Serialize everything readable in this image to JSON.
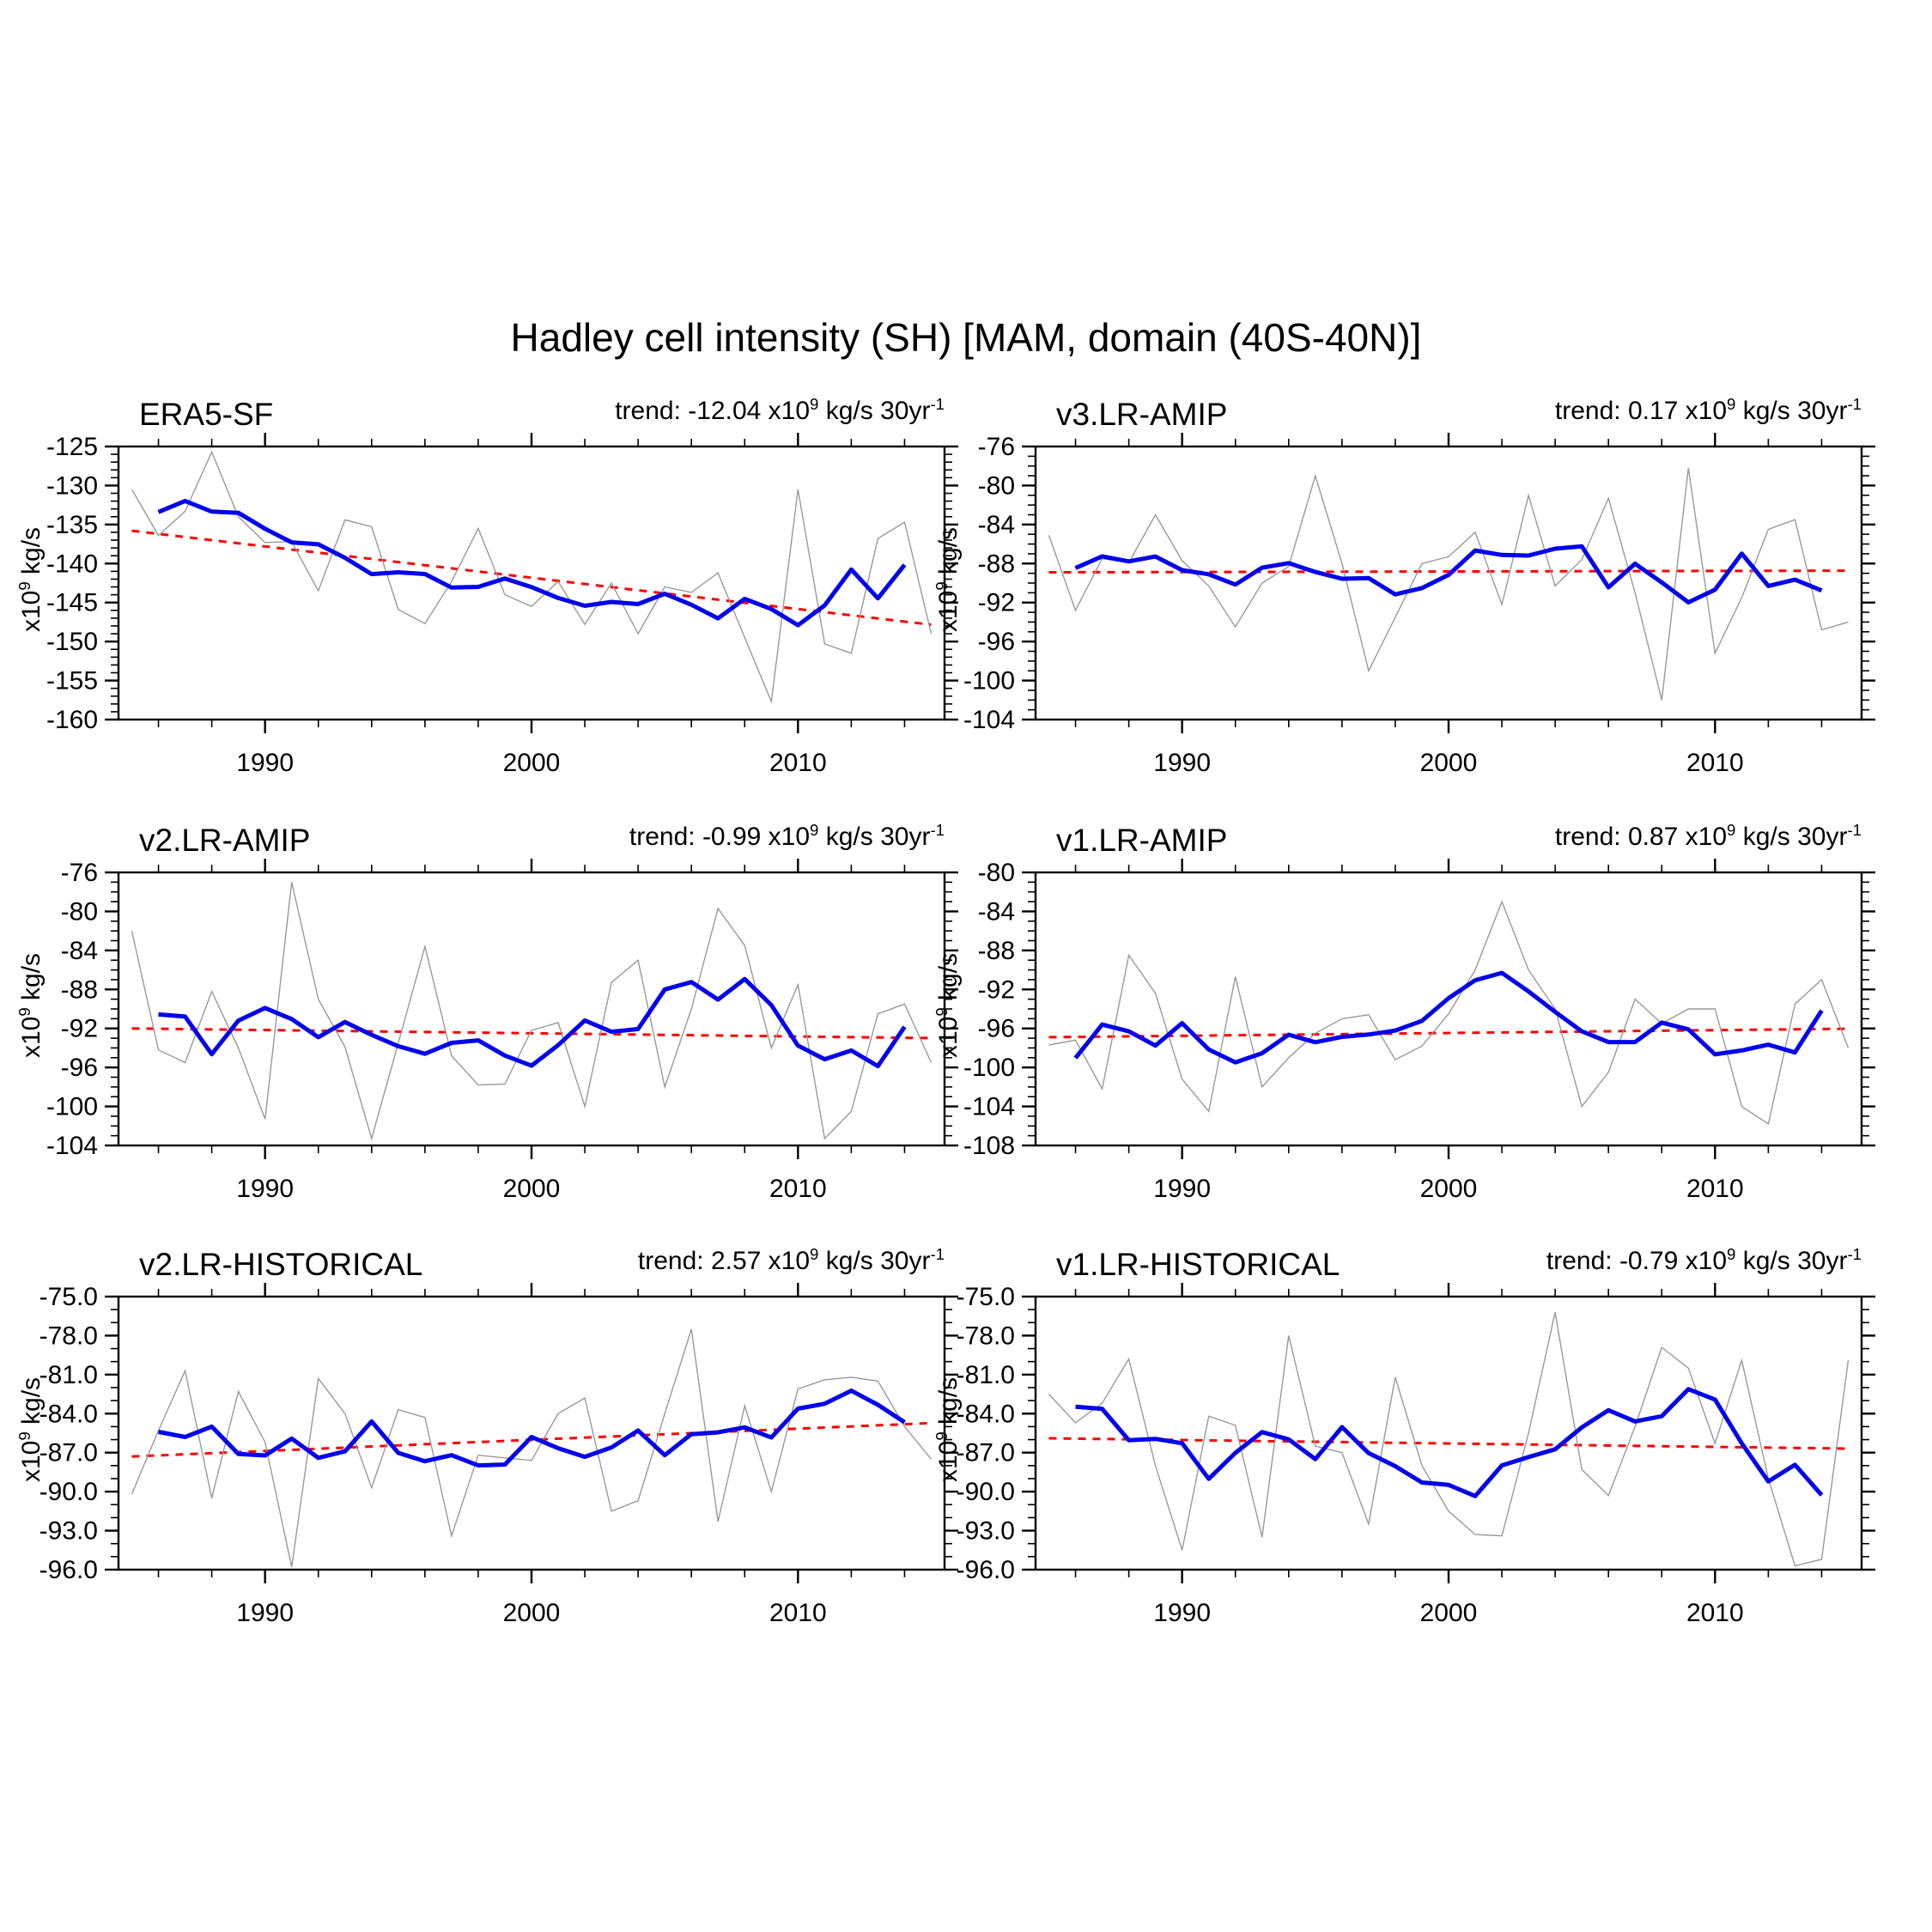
{
  "title": "Hadley cell intensity (SH) [MAM, domain (40S-40N)]",
  "trend_template": {
    "prefix": "trend: ",
    "x10": " x10",
    "sup9": "9",
    "mid": " kg/s 30yr",
    "supm1": "-1"
  },
  "axis": {
    "ylabel": {
      "prefix": "x10",
      "sup": "9",
      "suffix": " kg/s"
    },
    "x_tick_labels": [
      "1990",
      "2000",
      "2010"
    ]
  },
  "colors": {
    "raw_line": "#999999",
    "smoothed_line": "#0000ee",
    "trend_line": "#ff0000",
    "frame": "#000000"
  },
  "chart_data": {
    "type": "line",
    "title": "Hadley cell intensity (SH) [MAM, domain (40S-40N)]",
    "x_range": [
      1984.5,
      2015.5
    ],
    "x_major_years": [
      1990,
      2000,
      2010
    ],
    "x_minor_step": 2,
    "years_start": 1985,
    "years_end": 2015,
    "series_notes": "gray = annual values, blue = 5-year running mean (computed from raw), red = linear trend over 1985-2015",
    "panels": [
      {
        "name": "ERA5-SF",
        "trend_value": "-12.04",
        "row": 0,
        "col": 0,
        "ylim": [
          -160,
          -125
        ],
        "y_minor_step": 1,
        "y_tick_labels": [
          "-125",
          "-130",
          "-135",
          "-140",
          "-145",
          "-150",
          "-155",
          "-160"
        ],
        "raw_values": [
          -130.5,
          -136.4,
          -133.3,
          -125.7,
          -134.0,
          -137.3,
          -137.2,
          -143.5,
          -134.4,
          -135.3,
          -145.9,
          -147.7,
          -142.3,
          -135.5,
          -144.0,
          -145.5,
          -142.3,
          -147.8,
          -142.5,
          -149.0,
          -143.0,
          -143.7,
          -141.2,
          -149.5,
          -157.7,
          -130.5,
          -150.3,
          -151.5,
          -136.8,
          -134.7,
          -149.0
        ],
        "trend_endpoints": [
          -135.8,
          -147.84
        ]
      },
      {
        "name": "v3.LR-AMIP",
        "trend_value": "0.17",
        "row": 0,
        "col": 1,
        "ylim": [
          -104,
          -76
        ],
        "y_minor_step": 1,
        "y_tick_labels": [
          "-76",
          "-80",
          "-84",
          "-88",
          "-92",
          "-96",
          "-100",
          "-104"
        ],
        "raw_values": [
          -85.1,
          -92.8,
          -87.5,
          -87.9,
          -83.0,
          -87.7,
          -90.3,
          -94.5,
          -90.0,
          -88.3,
          -79.0,
          -88.0,
          -99.0,
          -93.5,
          -88.0,
          -87.3,
          -84.8,
          -92.2,
          -81.0,
          -90.3,
          -87.6,
          -81.3,
          -91.0,
          -102.0,
          -78.2,
          -97.2,
          -91.5,
          -84.5,
          -83.5,
          -94.8,
          -94.0
        ],
        "trend_endpoints": [
          -88.9,
          -88.73
        ]
      },
      {
        "name": "v2.LR-AMIP",
        "trend_value": "-0.99",
        "row": 1,
        "col": 0,
        "ylim": [
          -104,
          -76
        ],
        "y_minor_step": 1,
        "y_tick_labels": [
          "-76",
          "-80",
          "-84",
          "-88",
          "-92",
          "-96",
          "-100",
          "-104"
        ],
        "raw_values": [
          -82.0,
          -94.2,
          -95.5,
          -88.2,
          -94.0,
          -101.3,
          -77.0,
          -89.0,
          -93.9,
          -103.3,
          -93.5,
          -83.6,
          -94.8,
          -97.8,
          -97.7,
          -92.2,
          -91.4,
          -100.0,
          -87.3,
          -85.0,
          -98.0,
          -90.0,
          -79.7,
          -83.5,
          -94.0,
          -87.5,
          -103.3,
          -100.5,
          -90.5,
          -89.5,
          -95.5
        ],
        "trend_endpoints": [
          -92.0,
          -92.99
        ]
      },
      {
        "name": "v1.LR-AMIP",
        "trend_value": "0.87",
        "row": 1,
        "col": 1,
        "ylim": [
          -108,
          -80
        ],
        "y_minor_step": 1,
        "y_tick_labels": [
          "-80",
          "-84",
          "-88",
          "-92",
          "-96",
          "-100",
          "-104",
          "-108"
        ],
        "raw_values": [
          -97.7,
          -97.2,
          -102.2,
          -88.5,
          -92.4,
          -101.2,
          -104.5,
          -90.7,
          -102.0,
          -99.0,
          -96.5,
          -95.0,
          -94.6,
          -99.2,
          -97.8,
          -94.5,
          -90.0,
          -83.0,
          -90.0,
          -94.0,
          -104.0,
          -100.5,
          -93.0,
          -95.5,
          -94.0,
          -94.0,
          -104.0,
          -105.8,
          -93.5,
          -91.0,
          -98.0
        ],
        "trend_endpoints": [
          -96.9,
          -96.03
        ]
      },
      {
        "name": "v2.LR-HISTORICAL",
        "trend_value": "2.57",
        "row": 2,
        "col": 0,
        "ylim": [
          -96,
          -75
        ],
        "y_minor_step": 1,
        "y_tick_labels": [
          "-75.0",
          "-78.0",
          "-81.0",
          "-84.0",
          "-87.0",
          "-90.0",
          "-93.0",
          "-96.0"
        ],
        "raw_values": [
          -90.2,
          -85.3,
          -80.7,
          -90.5,
          -82.3,
          -86.2,
          -95.8,
          -81.3,
          -84.0,
          -89.7,
          -83.7,
          -84.3,
          -93.4,
          -87.2,
          -87.4,
          -87.6,
          -84.0,
          -82.8,
          -91.5,
          -90.7,
          -84.0,
          -77.5,
          -92.3,
          -83.4,
          -90.0,
          -82.1,
          -81.4,
          -81.2,
          -81.5,
          -85.0,
          -87.5
        ],
        "trend_endpoints": [
          -87.3,
          -84.73
        ]
      },
      {
        "name": "v1.LR-HISTORICAL",
        "trend_value": "-0.79",
        "row": 2,
        "col": 1,
        "ylim": [
          -96,
          -75
        ],
        "y_minor_step": 1,
        "y_tick_labels": [
          "-75.0",
          "-78.0",
          "-81.0",
          "-84.0",
          "-87.0",
          "-90.0",
          "-93.0",
          "-96.0"
        ],
        "raw_values": [
          -82.5,
          -84.7,
          -83.2,
          -79.8,
          -88.0,
          -94.5,
          -84.2,
          -84.9,
          -93.5,
          -78.0,
          -86.5,
          -87.0,
          -92.5,
          -81.2,
          -88.0,
          -91.5,
          -93.3,
          -93.4,
          -85.5,
          -76.2,
          -88.3,
          -90.3,
          -85.0,
          -78.9,
          -80.5,
          -86.3,
          -79.9,
          -89.0,
          -95.7,
          -95.2,
          -79.9
        ],
        "trend_endpoints": [
          -85.9,
          -86.69
        ]
      }
    ]
  }
}
